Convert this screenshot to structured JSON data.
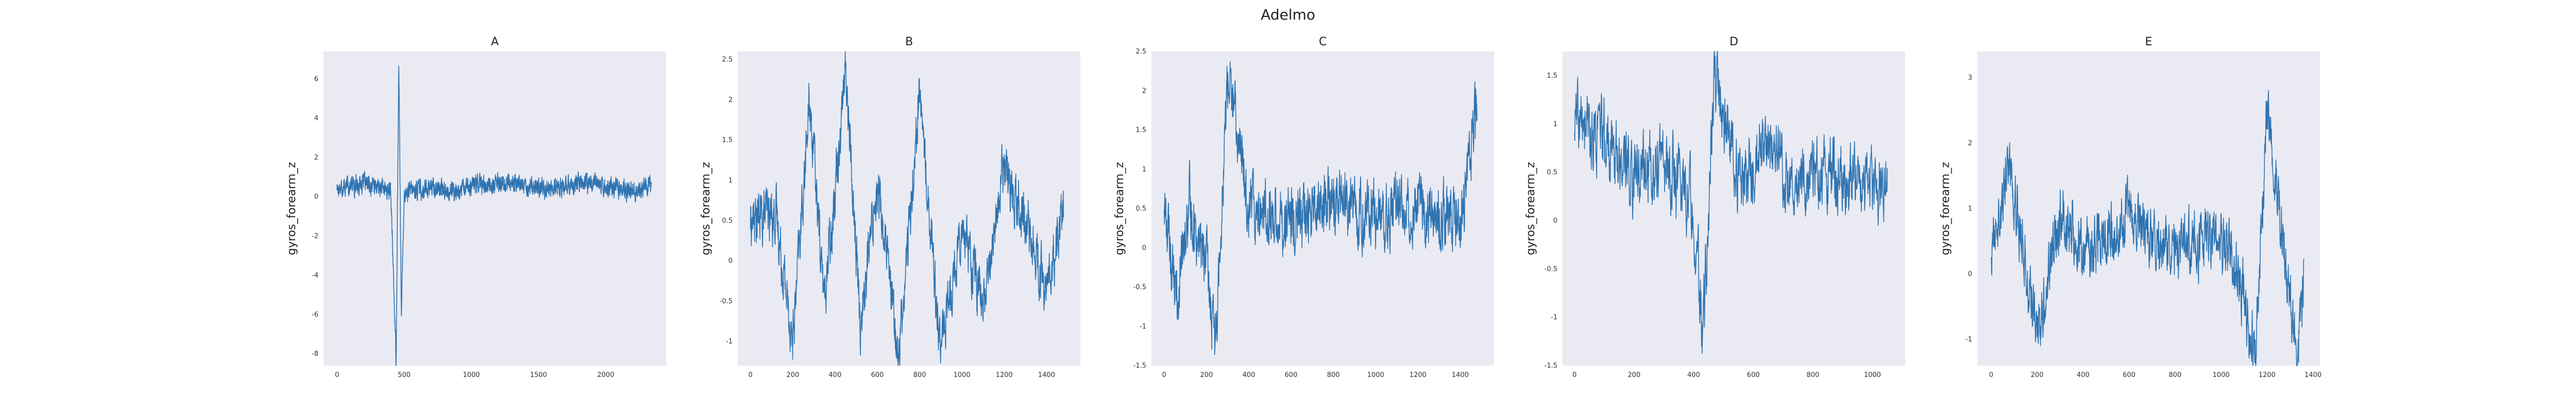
{
  "title": "Adelmo",
  "colors": {
    "line": "#2f74b1",
    "panel_bg": "#eaeaf2"
  },
  "chart_data": [
    {
      "type": "line",
      "title": "A",
      "ylabel": "gyros_forearm_z",
      "xlim": [
        -100,
        2450
      ],
      "ylim": [
        -8.6,
        7.4
      ],
      "xticks": [
        0,
        500,
        1000,
        1500,
        2000
      ],
      "yticks": [
        -8,
        -6,
        -4,
        -2,
        0,
        2,
        4,
        6
      ],
      "n": 2400,
      "grid": false,
      "series_shape": [
        [
          0,
          0.5
        ],
        [
          200,
          0.7
        ],
        [
          400,
          0.3
        ],
        [
          440,
          -8.3
        ],
        [
          460,
          6.8
        ],
        [
          480,
          -6.0
        ],
        [
          500,
          0.2
        ],
        [
          700,
          0.5
        ],
        [
          900,
          0.2
        ],
        [
          1000,
          0.6
        ],
        [
          1300,
          0.7
        ],
        [
          1600,
          0.4
        ],
        [
          1900,
          0.7
        ],
        [
          2200,
          0.3
        ],
        [
          2340,
          0.6
        ]
      ],
      "noise": 0.35
    },
    {
      "type": "line",
      "title": "B",
      "ylabel": "gyros_forearm_z",
      "xlim": [
        -60,
        1560
      ],
      "ylim": [
        -1.3,
        2.6
      ],
      "xticks": [
        0,
        200,
        400,
        600,
        800,
        1000,
        1200,
        1400
      ],
      "yticks": [
        -1.0,
        -0.5,
        0.0,
        0.5,
        1.0,
        1.5,
        2.0,
        2.5
      ],
      "n": 1500,
      "grid": false,
      "series_shape": [
        [
          0,
          0.5
        ],
        [
          120,
          0.6
        ],
        [
          200,
          -1.0
        ],
        [
          280,
          2.0
        ],
        [
          350,
          -0.5
        ],
        [
          450,
          2.4
        ],
        [
          520,
          -0.8
        ],
        [
          600,
          1.0
        ],
        [
          700,
          -1.2
        ],
        [
          800,
          2.1
        ],
        [
          900,
          -1.1
        ],
        [
          1000,
          0.5
        ],
        [
          1100,
          -0.6
        ],
        [
          1200,
          1.2
        ],
        [
          1300,
          0.5
        ],
        [
          1400,
          -0.4
        ],
        [
          1480,
          0.6
        ]
      ],
      "noise": 0.25
    },
    {
      "type": "line",
      "title": "C",
      "ylabel": "gyros_forearm_z",
      "xlim": [
        -60,
        1560
      ],
      "ylim": [
        -1.5,
        2.5
      ],
      "xticks": [
        0,
        200,
        400,
        600,
        800,
        1000,
        1200,
        1400
      ],
      "yticks": [
        -1.5,
        -1.0,
        -0.5,
        0.0,
        0.5,
        1.0,
        1.5,
        2.0,
        2.5
      ],
      "n": 1500,
      "grid": false,
      "series_shape": [
        [
          0,
          0.6
        ],
        [
          60,
          -0.7
        ],
        [
          120,
          0.5
        ],
        [
          200,
          -0.2
        ],
        [
          240,
          -1.3
        ],
        [
          300,
          2.2
        ],
        [
          400,
          0.6
        ],
        [
          600,
          0.3
        ],
        [
          800,
          0.6
        ],
        [
          1000,
          0.4
        ],
        [
          1200,
          0.6
        ],
        [
          1400,
          0.3
        ],
        [
          1480,
          1.8
        ]
      ],
      "noise": 0.3
    },
    {
      "type": "line",
      "title": "D",
      "ylabel": "gyros_forearm_z",
      "xlim": [
        -40,
        1110
      ],
      "ylim": [
        -1.5,
        1.75
      ],
      "xticks": [
        0,
        200,
        400,
        600,
        800,
        1000
      ],
      "yticks": [
        -1.5,
        -1.0,
        -0.5,
        0.0,
        0.5,
        1.0,
        1.5
      ],
      "n": 1060,
      "grid": false,
      "series_shape": [
        [
          0,
          1.0
        ],
        [
          100,
          0.8
        ],
        [
          200,
          0.5
        ],
        [
          300,
          0.6
        ],
        [
          400,
          0.2
        ],
        [
          430,
          -1.3
        ],
        [
          470,
          1.5
        ],
        [
          560,
          0.3
        ],
        [
          650,
          0.8
        ],
        [
          750,
          0.4
        ],
        [
          850,
          0.5
        ],
        [
          950,
          0.3
        ],
        [
          1050,
          0.4
        ]
      ],
      "noise": 0.3
    },
    {
      "type": "line",
      "title": "E",
      "ylabel": "gyros_forearm_z",
      "xlim": [
        -60,
        1430
      ],
      "ylim": [
        -1.4,
        3.4
      ],
      "xticks": [
        0,
        200,
        400,
        600,
        800,
        1000,
        1200,
        1400
      ],
      "yticks": [
        -1,
        0,
        1,
        2,
        3
      ],
      "n": 1370,
      "grid": false,
      "series_shape": [
        [
          0,
          0.3
        ],
        [
          80,
          1.8
        ],
        [
          200,
          -1.0
        ],
        [
          300,
          1.0
        ],
        [
          400,
          0.3
        ],
        [
          600,
          0.8
        ],
        [
          800,
          0.4
        ],
        [
          1000,
          0.6
        ],
        [
          1100,
          -0.3
        ],
        [
          1150,
          -1.3
        ],
        [
          1200,
          2.5
        ],
        [
          1280,
          0.2
        ],
        [
          1330,
          -1.3
        ],
        [
          1360,
          0.0
        ]
      ],
      "noise": 0.35
    }
  ]
}
